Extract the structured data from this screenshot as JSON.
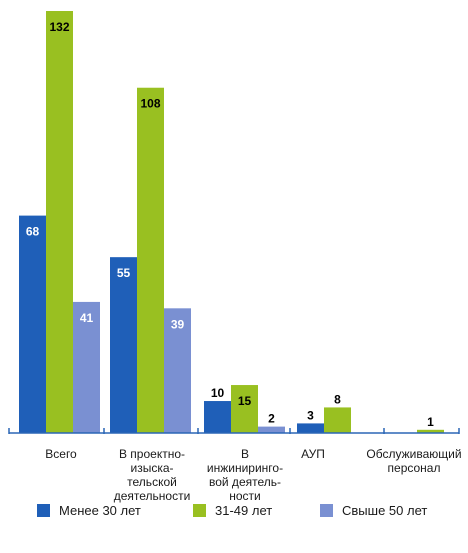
{
  "chart_data": {
    "type": "bar",
    "categories": [
      [
        "Всего"
      ],
      [
        "В проектно-",
        "изыска-",
        "тельской",
        "деятельности"
      ],
      [
        "В",
        "инжиниринго-",
        "вой деятель-",
        "ности"
      ],
      [
        "АУП"
      ],
      [
        "Обслуживающий",
        "персонал"
      ]
    ],
    "series": [
      {
        "name": "Менее 30 лет",
        "color": "#1f5fb8",
        "values": [
          68,
          55,
          10,
          3,
          0
        ],
        "labels": [
          "68",
          "55",
          "10",
          "3",
          ""
        ]
      },
      {
        "name": "31-49 лет",
        "color": "#99c021",
        "values": [
          132,
          108,
          15,
          8,
          1
        ],
        "labels": [
          "132",
          "108",
          "15",
          "8",
          "1"
        ]
      },
      {
        "name": "Свыше 50 лет",
        "color": "#7a90d2",
        "values": [
          41,
          39,
          2,
          0,
          0
        ],
        "labels": [
          "41",
          "39",
          "2",
          "",
          ""
        ]
      }
    ],
    "ylim": [
      0,
      132
    ],
    "grid": false,
    "legend_position": "bottom",
    "axis_color": "#2b66b5"
  }
}
